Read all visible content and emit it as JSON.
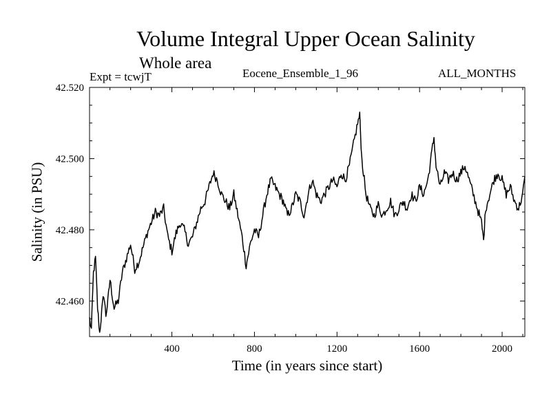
{
  "header": {
    "title": "Volume Integral Upper Ocean Salinity",
    "subtitle": "Whole area",
    "expt": "Expt = tcwjT",
    "run": "Eocene_Ensemble_1_96",
    "months": "ALL_MONTHS"
  },
  "chart_data": {
    "type": "line",
    "title": "Volume Integral Upper Ocean Salinity",
    "subtitle": "Whole area",
    "xlabel": "Time (in years since start)",
    "ylabel": "Salinity (in PSU)",
    "xlim": [
      1,
      2110
    ],
    "ylim": [
      42.45,
      42.52
    ],
    "xticks": [
      400,
      800,
      1200,
      1600,
      2000
    ],
    "yticks": [
      42.46,
      42.48,
      42.5,
      42.52
    ],
    "ytick_labels": [
      "42.460",
      "42.480",
      "42.500",
      "42.520"
    ],
    "grid": false,
    "series": [
      {
        "color": "#000000",
        "x": [
          1,
          10,
          20,
          30,
          40,
          50,
          60,
          70,
          80,
          90,
          100,
          120,
          140,
          160,
          180,
          200,
          220,
          240,
          260,
          280,
          300,
          320,
          340,
          360,
          380,
          400,
          420,
          440,
          460,
          480,
          500,
          520,
          540,
          560,
          580,
          600,
          620,
          640,
          660,
          680,
          700,
          720,
          740,
          760,
          780,
          800,
          820,
          840,
          860,
          880,
          900,
          920,
          940,
          960,
          980,
          1000,
          1020,
          1040,
          1060,
          1080,
          1100,
          1120,
          1140,
          1160,
          1180,
          1200,
          1220,
          1240,
          1260,
          1280,
          1300,
          1310,
          1320,
          1340,
          1360,
          1380,
          1400,
          1420,
          1440,
          1460,
          1480,
          1500,
          1520,
          1540,
          1560,
          1580,
          1600,
          1620,
          1640,
          1660,
          1670,
          1680,
          1700,
          1720,
          1740,
          1760,
          1780,
          1800,
          1820,
          1840,
          1860,
          1880,
          1900,
          1910,
          1920,
          1940,
          1960,
          1980,
          2000,
          2020,
          2040,
          2060,
          2080,
          2100,
          2110
        ],
        "y": [
          42.455,
          42.452,
          42.468,
          42.472,
          42.458,
          42.451,
          42.457,
          42.462,
          42.456,
          42.46,
          42.466,
          42.458,
          42.46,
          42.468,
          42.472,
          42.476,
          42.469,
          42.471,
          42.475,
          42.479,
          42.482,
          42.485,
          42.484,
          42.486,
          42.478,
          42.474,
          42.479,
          42.482,
          42.48,
          42.476,
          42.478,
          42.482,
          42.486,
          42.488,
          42.492,
          42.496,
          42.494,
          42.49,
          42.488,
          42.486,
          42.49,
          42.484,
          42.478,
          42.47,
          42.476,
          42.48,
          42.478,
          42.484,
          42.49,
          42.494,
          42.492,
          42.49,
          42.488,
          42.484,
          42.486,
          42.49,
          42.488,
          42.484,
          42.49,
          42.494,
          42.49,
          42.488,
          42.49,
          42.492,
          42.494,
          42.492,
          42.496,
          42.494,
          42.498,
          42.504,
          42.51,
          42.512,
          42.5,
          42.49,
          42.486,
          42.484,
          42.487,
          42.484,
          42.486,
          42.488,
          42.484,
          42.486,
          42.488,
          42.486,
          42.49,
          42.488,
          42.492,
          42.49,
          42.494,
          42.502,
          42.506,
          42.498,
          42.492,
          42.496,
          42.494,
          42.496,
          42.494,
          42.496,
          42.498,
          42.494,
          42.49,
          42.486,
          42.482,
          42.477,
          42.486,
          42.49,
          42.494,
          42.496,
          42.494,
          42.49,
          42.492,
          42.488,
          42.486,
          42.49,
          42.495
        ]
      }
    ]
  }
}
